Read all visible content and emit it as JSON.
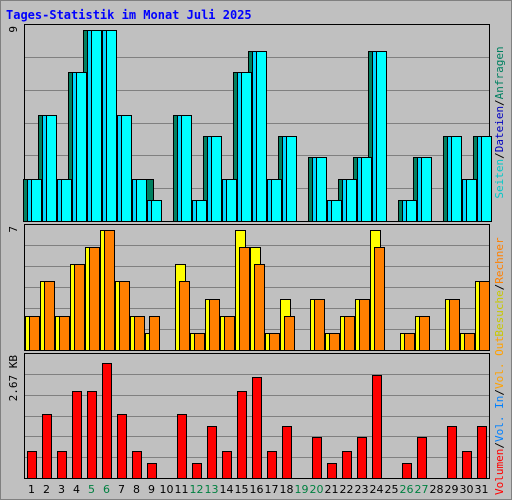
{
  "chart_data": {
    "type": "bar",
    "title": "Tages-Statistik im Monat Juli 2025",
    "categories": [
      "1",
      "2",
      "3",
      "4",
      "5",
      "6",
      "7",
      "8",
      "9",
      "10",
      "11",
      "12",
      "13",
      "14",
      "15",
      "16",
      "17",
      "18",
      "19",
      "20",
      "21",
      "22",
      "23",
      "24",
      "25",
      "26",
      "27",
      "28",
      "29",
      "30",
      "31"
    ],
    "weekend_days": [
      "5",
      "6",
      "12",
      "13",
      "19",
      "20",
      "26",
      "27"
    ],
    "colors": {
      "background": "#c0c0c0",
      "anfragen": "#008060",
      "dateien": "#00d8ff",
      "seiten": "#00ffff",
      "besuche": "#ffff00",
      "rechner": "#ff8000",
      "volumen": "#ff0000",
      "out": "#ffa000",
      "in": "#0080ff",
      "title": "#0000ff",
      "weekend": "#008040"
    },
    "panels": [
      {
        "id": "top",
        "max_label": "9",
        "ylim": [
          0,
          9
        ],
        "right_label": [
          {
            "text": "Seiten",
            "color": "#00c8c8"
          },
          {
            "text": "/",
            "color": "#000000"
          },
          {
            "text": "Dateien",
            "color": "#0000c0"
          },
          {
            "text": "/",
            "color": "#000000"
          },
          {
            "text": "Anfragen",
            "color": "#008060"
          }
        ],
        "series": [
          {
            "name": "Anfragen",
            "color": "#008060",
            "values": [
              2,
              5,
              2,
              7,
              9,
              9,
              5,
              2,
              2,
              0,
              5,
              1,
              4,
              2,
              7,
              8,
              2,
              4,
              0,
              3,
              1,
              2,
              3,
              8,
              0,
              1,
              3,
              0,
              4,
              2,
              4
            ]
          },
          {
            "name": "Dateien",
            "color": "#00d8ff",
            "values": [
              2,
              5,
              2,
              7,
              9,
              9,
              5,
              2,
              1,
              0,
              5,
              1,
              4,
              2,
              7,
              8,
              2,
              4,
              0,
              3,
              1,
              2,
              3,
              8,
              0,
              1,
              3,
              0,
              4,
              2,
              4
            ]
          },
          {
            "name": "Seiten",
            "color": "#00ffff",
            "values": [
              2,
              5,
              2,
              7,
              9,
              9,
              5,
              2,
              1,
              0,
              5,
              1,
              4,
              2,
              7,
              8,
              2,
              4,
              0,
              3,
              1,
              2,
              3,
              8,
              0,
              1,
              3,
              0,
              4,
              2,
              4
            ]
          }
        ]
      },
      {
        "id": "middle",
        "max_label": "7",
        "ylim": [
          0,
          7
        ],
        "right_label": [
          {
            "text": "Besuche",
            "color": "#c8c800"
          },
          {
            "text": "/",
            "color": "#000000"
          },
          {
            "text": "Rechner",
            "color": "#ff8000"
          }
        ],
        "series": [
          {
            "name": "Besuche",
            "color": "#ffff00",
            "values": [
              2,
              4,
              2,
              5,
              6,
              7,
              4,
              2,
              1,
              0,
              5,
              1,
              3,
              2,
              7,
              6,
              1,
              3,
              0,
              3,
              1,
              2,
              3,
              7,
              0,
              1,
              2,
              0,
              3,
              1,
              4
            ]
          },
          {
            "name": "Rechner",
            "color": "#ff8000",
            "values": [
              2,
              4,
              2,
              5,
              6,
              7,
              4,
              2,
              2,
              0,
              4,
              1,
              3,
              2,
              6,
              5,
              1,
              2,
              0,
              3,
              1,
              2,
              3,
              6,
              0,
              1,
              2,
              0,
              3,
              1,
              4
            ]
          }
        ]
      },
      {
        "id": "bottom",
        "max_label": "2.67 KB",
        "ylim": [
          0,
          2.67
        ],
        "right_label": [
          {
            "text": "Volumen",
            "color": "#ff0000"
          },
          {
            "text": "/",
            "color": "#000000"
          },
          {
            "text": "Vol. In",
            "color": "#0080ff"
          },
          {
            "text": "/",
            "color": "#000000"
          },
          {
            "text": "Vol. Out",
            "color": "#ffa000"
          }
        ],
        "series": [
          {
            "name": "Volumen",
            "color": "#ff0000",
            "values": [
              0.6,
              1.43,
              0.6,
              1.95,
              1.95,
              2.57,
              1.43,
              0.6,
              0.34,
              0,
              1.43,
              0.34,
              1.17,
              0.6,
              1.95,
              2.26,
              0.6,
              1.17,
              0,
              0.91,
              0.34,
              0.6,
              0.91,
              2.31,
              0,
              0.34,
              0.91,
              0,
              1.17,
              0.6,
              1.17
            ]
          }
        ]
      }
    ]
  }
}
